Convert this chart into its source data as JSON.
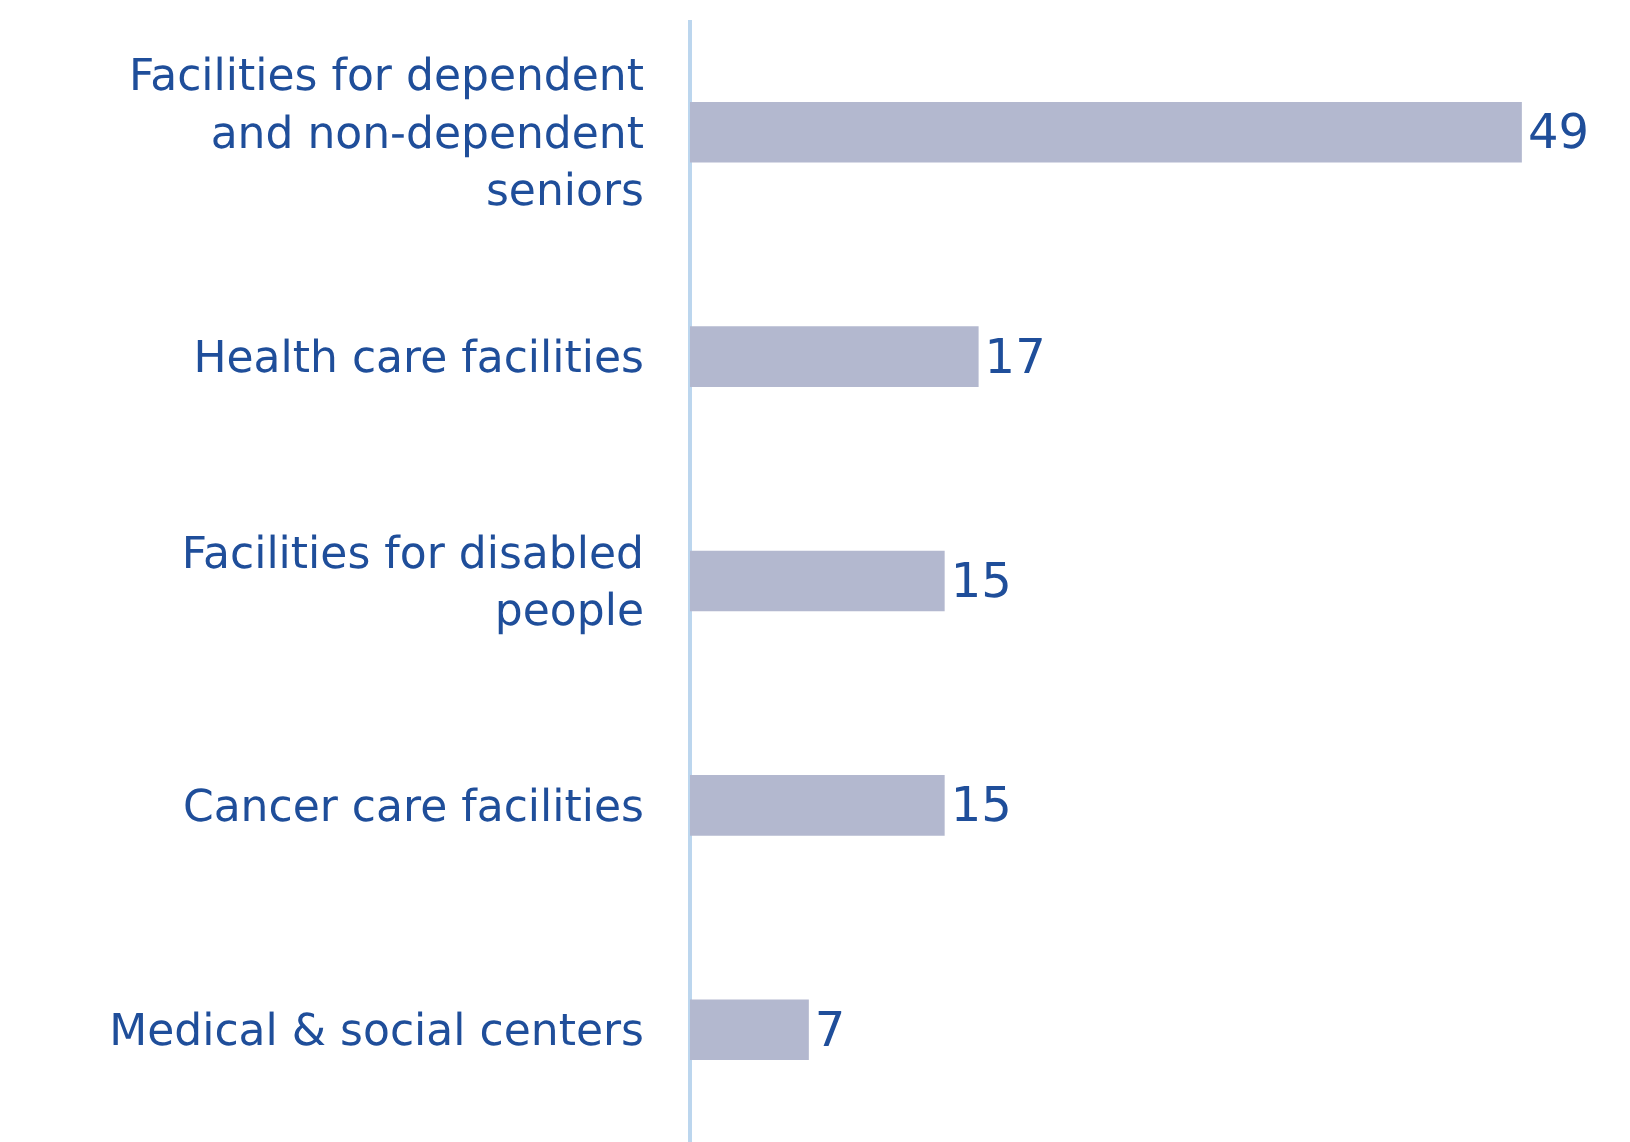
{
  "chart_data": {
    "type": "bar",
    "orientation": "horizontal",
    "categories": [
      "Facilities for dependent and non-dependent seniors",
      "Health care facilities",
      "Facilities for disabled people",
      "Cancer care facilities",
      "Medical & social centers"
    ],
    "values": [
      49,
      17,
      15,
      15,
      7
    ],
    "color": "#b3b8cf",
    "data_labels": true,
    "tick_labels": "y"
  }
}
